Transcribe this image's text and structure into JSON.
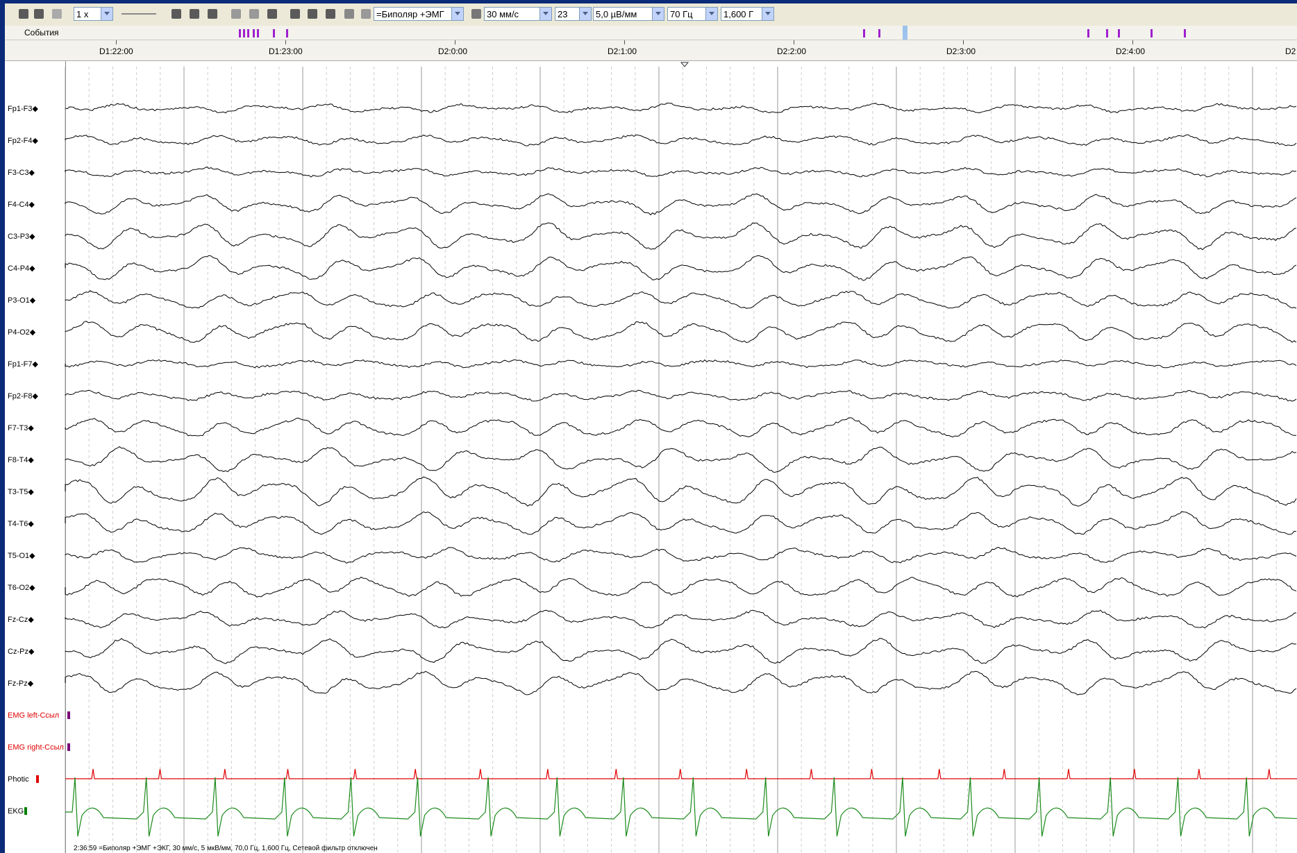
{
  "toolbar": {
    "zoom": "1 x",
    "montage": "=Биполяр +ЭМГ",
    "speed": "30 мм/с",
    "page": "23",
    "sensitivity": "5,0 µВ/мм",
    "lowpass": "70 Гц",
    "highpass": "1,600 Г"
  },
  "events_label": "События",
  "time_labels": [
    "D1:22:00",
    "D1:23:00",
    "D2:0:00",
    "D2:1:00",
    "D2:2:00",
    "D2:3:00",
    "D2:4:00",
    "D2"
  ],
  "channels": [
    "Fp1-F3◆",
    "Fp2-F4◆",
    "F3-C3◆",
    "F4-C4◆",
    "C3-P3◆",
    "C4-P4◆",
    "P3-O1◆",
    "P4-O2◆",
    "Fp1-F7◆",
    "Fp2-F8◆",
    "F7-T3◆",
    "F8-T4◆",
    "T3-T5◆",
    "T4-T6◆",
    "T5-O1◆",
    "T6-O2◆",
    "Fz-Cz◆",
    "Cz-Pz◆",
    "Fz-Pz◆",
    "EMG left-Ссыл",
    "EMG right-Ссыл",
    "Photic",
    "EKG"
  ],
  "status": "2:36:59 =Биполяр +ЭМГ +ЭКГ, 30 мм/с, 5 мкВ/мм, 70,0 Гц, 1,600 Гц, Сетевой фильтр отключен"
}
